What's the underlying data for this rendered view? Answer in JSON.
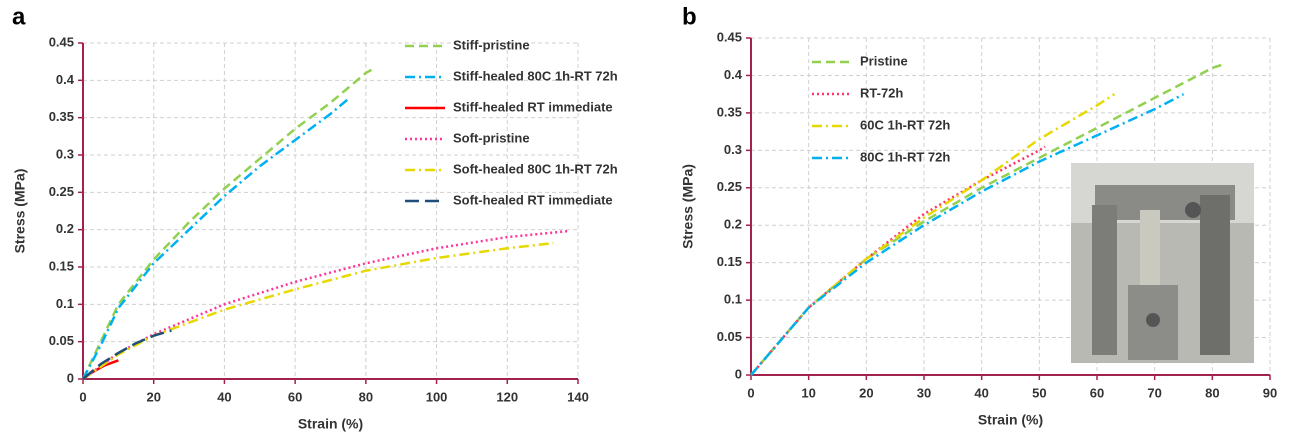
{
  "chart_data": [
    {
      "type": "line",
      "panel": "a",
      "xlabel": "Strain (%)",
      "ylabel": "Stress (MPa)",
      "xlim": [
        0,
        140
      ],
      "xticks": [
        0,
        20,
        40,
        60,
        80,
        100,
        120,
        140
      ],
      "ylim": [
        0,
        0.45
      ],
      "yticks": [
        0,
        0.05,
        0.1,
        0.15,
        0.2,
        0.25,
        0.3,
        0.35,
        0.4,
        0.45
      ],
      "grid": true,
      "legend": "upper right",
      "axis_color": "#a3224b",
      "series": [
        {
          "name": "Stiff-pristine",
          "color": "#92d050",
          "style": "dashed",
          "x": [
            0,
            5,
            10,
            20,
            30,
            40,
            50,
            60,
            70,
            80,
            82
          ],
          "values": [
            0,
            0.05,
            0.1,
            0.16,
            0.21,
            0.255,
            0.295,
            0.335,
            0.37,
            0.41,
            0.415
          ]
        },
        {
          "name": "Stiff-healed 80C 1h-RT 72h",
          "color": "#00b0f0",
          "style": "dashdot",
          "x": [
            0,
            5,
            10,
            20,
            30,
            40,
            50,
            60,
            70,
            75
          ],
          "values": [
            0,
            0.045,
            0.095,
            0.155,
            0.2,
            0.245,
            0.285,
            0.32,
            0.355,
            0.375
          ]
        },
        {
          "name": "Stiff-healed RT immediate",
          "color": "#ff0000",
          "style": "solid",
          "x": [
            0,
            3,
            6,
            10
          ],
          "values": [
            0,
            0.01,
            0.018,
            0.025
          ]
        },
        {
          "name": "Soft-pristine",
          "color": "#ff3399",
          "style": "dotted",
          "x": [
            0,
            10,
            20,
            40,
            60,
            80,
            100,
            120,
            137
          ],
          "values": [
            0,
            0.035,
            0.06,
            0.1,
            0.13,
            0.155,
            0.175,
            0.19,
            0.198
          ]
        },
        {
          "name": "Soft-healed 80C 1h-RT 72h",
          "color": "#e6d800",
          "style": "dashdot",
          "x": [
            0,
            10,
            20,
            40,
            60,
            80,
            100,
            120,
            133
          ],
          "values": [
            0,
            0.033,
            0.058,
            0.093,
            0.12,
            0.145,
            0.162,
            0.175,
            0.182
          ]
        },
        {
          "name": "Soft-healed RT immediate",
          "color": "#1f4e79",
          "style": "longdash",
          "x": [
            0,
            5,
            10,
            15,
            20,
            25
          ],
          "values": [
            0,
            0.02,
            0.035,
            0.048,
            0.058,
            0.065
          ]
        }
      ]
    },
    {
      "type": "line",
      "panel": "b",
      "xlabel": "Strain (%)",
      "ylabel": "Stress (MPa)",
      "xlim": [
        0,
        90
      ],
      "xticks": [
        0,
        10,
        20,
        30,
        40,
        50,
        60,
        70,
        80,
        90
      ],
      "ylim": [
        0,
        0.45
      ],
      "yticks": [
        0,
        0.05,
        0.1,
        0.15,
        0.2,
        0.25,
        0.3,
        0.35,
        0.4,
        0.45
      ],
      "grid": true,
      "legend": "upper left",
      "axis_color": "#a3224b",
      "series": [
        {
          "name": "Pristine",
          "color": "#92d050",
          "style": "dashed",
          "x": [
            0,
            10,
            20,
            30,
            40,
            50,
            60,
            70,
            80,
            82
          ],
          "values": [
            0,
            0.09,
            0.155,
            0.205,
            0.25,
            0.29,
            0.33,
            0.37,
            0.41,
            0.415
          ]
        },
        {
          "name": "RT-72h",
          "color": "#ff3366",
          "style": "dotted",
          "x": [
            0,
            10,
            20,
            30,
            40,
            50,
            51
          ],
          "values": [
            0,
            0.09,
            0.155,
            0.215,
            0.26,
            0.3,
            0.305
          ]
        },
        {
          "name": "60C 1h-RT 72h",
          "color": "#e6d800",
          "style": "dashdot",
          "x": [
            0,
            10,
            20,
            30,
            40,
            50,
            60,
            63
          ],
          "values": [
            0,
            0.09,
            0.155,
            0.21,
            0.26,
            0.315,
            0.36,
            0.375
          ]
        },
        {
          "name": "80C 1h-RT 72h",
          "color": "#00b0f0",
          "style": "dashdot",
          "x": [
            0,
            10,
            20,
            30,
            40,
            50,
            60,
            70,
            75
          ],
          "values": [
            0,
            0.09,
            0.15,
            0.2,
            0.245,
            0.285,
            0.32,
            0.355,
            0.375
          ]
        }
      ]
    }
  ]
}
